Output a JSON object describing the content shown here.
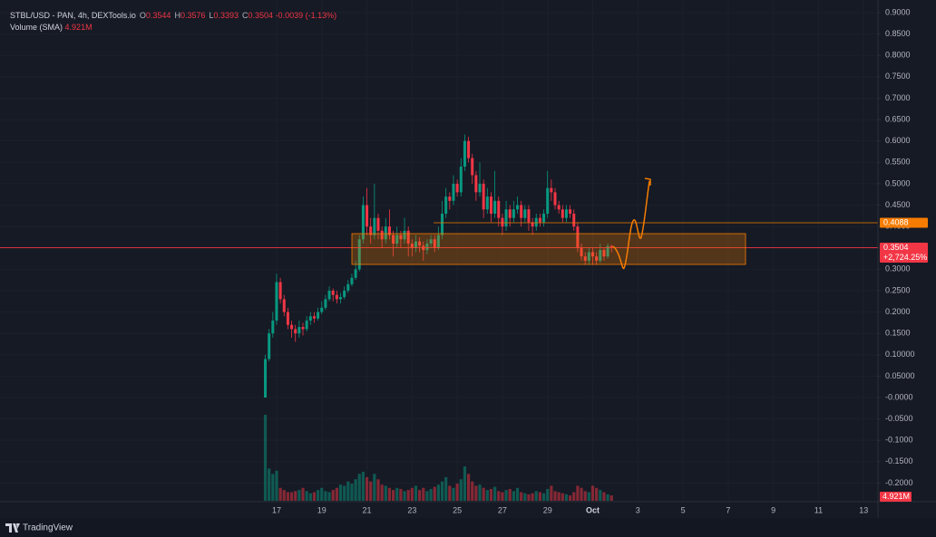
{
  "chart_data": {
    "type": "candlestick",
    "title": "STBL/USD - PAN, 4h, DEXTools.io",
    "legend": {
      "fields": [
        {
          "key": "O",
          "value": 0.3544
        },
        {
          "key": "H",
          "value": 0.3576
        },
        {
          "key": "L",
          "value": 0.3393
        },
        {
          "key": "C",
          "value": 0.3504
        }
      ],
      "change": "-0.0039 (-1.13%)"
    },
    "indicator": {
      "name": "Volume (SMA)",
      "value": "4.921M"
    },
    "up_color": "#089981",
    "down_color": "#f23645",
    "open": [
      0.0,
      0.09,
      0.15,
      0.18,
      0.27,
      0.23,
      0.2,
      0.17,
      0.16,
      0.15,
      0.165,
      0.16,
      0.18,
      0.19,
      0.185,
      0.2,
      0.21,
      0.23,
      0.25,
      0.24,
      0.23,
      0.235,
      0.25,
      0.265,
      0.28,
      0.3,
      0.37,
      0.45,
      0.4,
      0.38,
      0.42,
      0.39,
      0.37,
      0.4,
      0.38,
      0.36,
      0.38,
      0.37,
      0.39,
      0.36,
      0.35,
      0.365,
      0.355,
      0.345,
      0.36,
      0.37,
      0.35,
      0.38,
      0.43,
      0.47,
      0.46,
      0.5,
      0.48,
      0.54,
      0.6,
      0.56,
      0.52,
      0.48,
      0.5,
      0.44,
      0.47,
      0.43,
      0.46,
      0.42,
      0.4,
      0.44,
      0.42,
      0.44,
      0.45,
      0.42,
      0.44,
      0.41,
      0.4,
      0.42,
      0.41,
      0.43,
      0.49,
      0.48,
      0.45,
      0.44,
      0.42,
      0.44,
      0.43,
      0.4,
      0.35,
      0.33,
      0.32,
      0.34,
      0.33,
      0.32,
      0.345,
      0.33,
      0.3544
    ],
    "high": [
      0.1,
      0.16,
      0.2,
      0.29,
      0.28,
      0.24,
      0.21,
      0.18,
      0.17,
      0.18,
      0.175,
      0.19,
      0.2,
      0.2,
      0.21,
      0.225,
      0.24,
      0.26,
      0.255,
      0.25,
      0.245,
      0.26,
      0.275,
      0.29,
      0.32,
      0.38,
      0.47,
      0.49,
      0.42,
      0.5,
      0.43,
      0.4,
      0.42,
      0.44,
      0.39,
      0.4,
      0.39,
      0.42,
      0.4,
      0.37,
      0.38,
      0.375,
      0.365,
      0.37,
      0.38,
      0.38,
      0.4,
      0.46,
      0.49,
      0.48,
      0.52,
      0.51,
      0.56,
      0.615,
      0.61,
      0.57,
      0.53,
      0.55,
      0.51,
      0.49,
      0.48,
      0.53,
      0.47,
      0.43,
      0.46,
      0.45,
      0.46,
      0.47,
      0.46,
      0.45,
      0.45,
      0.42,
      0.43,
      0.43,
      0.44,
      0.53,
      0.51,
      0.49,
      0.46,
      0.45,
      0.45,
      0.45,
      0.44,
      0.41,
      0.36,
      0.34,
      0.35,
      0.35,
      0.34,
      0.36,
      0.35,
      0.36,
      0.3576
    ],
    "low": [
      0.0,
      0.085,
      0.14,
      0.17,
      0.22,
      0.19,
      0.16,
      0.14,
      0.13,
      0.14,
      0.145,
      0.155,
      0.17,
      0.175,
      0.18,
      0.195,
      0.205,
      0.225,
      0.225,
      0.22,
      0.22,
      0.23,
      0.245,
      0.26,
      0.275,
      0.295,
      0.36,
      0.38,
      0.36,
      0.37,
      0.37,
      0.35,
      0.36,
      0.37,
      0.33,
      0.35,
      0.35,
      0.36,
      0.33,
      0.33,
      0.34,
      0.34,
      0.32,
      0.335,
      0.35,
      0.34,
      0.345,
      0.37,
      0.42,
      0.44,
      0.45,
      0.47,
      0.47,
      0.53,
      0.55,
      0.5,
      0.46,
      0.47,
      0.42,
      0.43,
      0.41,
      0.42,
      0.4,
      0.38,
      0.39,
      0.4,
      0.41,
      0.43,
      0.4,
      0.41,
      0.39,
      0.38,
      0.39,
      0.4,
      0.4,
      0.42,
      0.46,
      0.44,
      0.43,
      0.41,
      0.41,
      0.42,
      0.39,
      0.34,
      0.32,
      0.31,
      0.31,
      0.31,
      0.31,
      0.315,
      0.32,
      0.325,
      0.3393
    ],
    "close": [
      0.09,
      0.15,
      0.18,
      0.27,
      0.23,
      0.2,
      0.17,
      0.16,
      0.15,
      0.165,
      0.16,
      0.18,
      0.19,
      0.185,
      0.2,
      0.21,
      0.23,
      0.25,
      0.24,
      0.23,
      0.235,
      0.25,
      0.265,
      0.28,
      0.3,
      0.37,
      0.45,
      0.4,
      0.38,
      0.42,
      0.39,
      0.37,
      0.4,
      0.38,
      0.36,
      0.38,
      0.37,
      0.39,
      0.36,
      0.35,
      0.365,
      0.355,
      0.345,
      0.36,
      0.37,
      0.35,
      0.38,
      0.43,
      0.47,
      0.46,
      0.5,
      0.48,
      0.54,
      0.6,
      0.56,
      0.52,
      0.48,
      0.5,
      0.44,
      0.47,
      0.43,
      0.46,
      0.42,
      0.4,
      0.44,
      0.42,
      0.44,
      0.45,
      0.42,
      0.44,
      0.41,
      0.4,
      0.42,
      0.41,
      0.43,
      0.49,
      0.48,
      0.45,
      0.44,
      0.42,
      0.44,
      0.43,
      0.4,
      0.35,
      0.33,
      0.32,
      0.34,
      0.33,
      0.32,
      0.345,
      0.33,
      0.3544,
      0.3504
    ],
    "volume": [
      80,
      30,
      25,
      28,
      12,
      10,
      8,
      8,
      9,
      10,
      12,
      9,
      7,
      8,
      10,
      12,
      9,
      8,
      10,
      12,
      15,
      14,
      18,
      16,
      20,
      25,
      27,
      22,
      18,
      25,
      20,
      15,
      14,
      12,
      10,
      12,
      11,
      9,
      10,
      12,
      14,
      10,
      12,
      9,
      11,
      13,
      15,
      18,
      22,
      14,
      12,
      16,
      20,
      32,
      25,
      18,
      14,
      15,
      12,
      10,
      11,
      13,
      9,
      8,
      10,
      11,
      9,
      12,
      8,
      7,
      6,
      7,
      9,
      8,
      7,
      11,
      14,
      9,
      8,
      7,
      6,
      5,
      8,
      14,
      12,
      9,
      8,
      14,
      12,
      10,
      8,
      6,
      5
    ],
    "xlim": [
      -70.5,
      162.8
    ],
    "xticks": [
      {
        "value": 3,
        "label": "17"
      },
      {
        "value": 15,
        "label": "19"
      },
      {
        "value": 27,
        "label": "21"
      },
      {
        "value": 39,
        "label": "23"
      },
      {
        "value": 51,
        "label": "25"
      },
      {
        "value": 63,
        "label": "27"
      },
      {
        "value": 75,
        "label": "29"
      },
      {
        "value": 87,
        "label": "Oct"
      },
      {
        "value": 99,
        "label": "3"
      },
      {
        "value": 111,
        "label": "5"
      },
      {
        "value": 123,
        "label": "7"
      },
      {
        "value": 135,
        "label": "9"
      },
      {
        "value": 147,
        "label": "11"
      },
      {
        "value": 159,
        "label": "13"
      }
    ],
    "ylim": [
      -0.2414,
      0.9297
    ],
    "yticks": [
      {
        "value": 0.9,
        "label": "0.9000"
      },
      {
        "value": 0.85,
        "label": "0.8500"
      },
      {
        "value": 0.8,
        "label": "0.8000"
      },
      {
        "value": 0.75,
        "label": "0.7500"
      },
      {
        "value": 0.7,
        "label": "0.7000"
      },
      {
        "value": 0.65,
        "label": "0.6500"
      },
      {
        "value": 0.6,
        "label": "0.6000"
      },
      {
        "value": 0.55,
        "label": "0.5500"
      },
      {
        "value": 0.5,
        "label": "0.5000"
      },
      {
        "value": 0.45,
        "label": "0.4500"
      },
      {
        "value": 0.4,
        "label": "0.4000"
      },
      {
        "value": 0.35,
        "label": "0.3500"
      },
      {
        "value": 0.3,
        "label": "0.3000"
      },
      {
        "value": 0.25,
        "label": "0.2500"
      },
      {
        "value": 0.2,
        "label": "0.2000"
      },
      {
        "value": 0.15,
        "label": "0.1500"
      },
      {
        "value": 0.1,
        "label": "0.10000"
      },
      {
        "value": 0.05,
        "label": "0.05000"
      },
      {
        "value": 0,
        "label": "-0.0000"
      },
      {
        "value": -0.05,
        "label": "-0.0500"
      },
      {
        "value": -0.1,
        "label": "-0.1000"
      },
      {
        "value": -0.15,
        "label": "-0.1500"
      },
      {
        "value": -0.2,
        "label": "-0.2000"
      }
    ],
    "grid": true,
    "price_tags": [
      {
        "value": 0.4088,
        "color": "#f57c00"
      },
      {
        "value": 0.3504,
        "change": "+2,724.25%",
        "color": "#f23645"
      }
    ],
    "volume_tag": "4.921M",
    "brand": "TradingView"
  }
}
